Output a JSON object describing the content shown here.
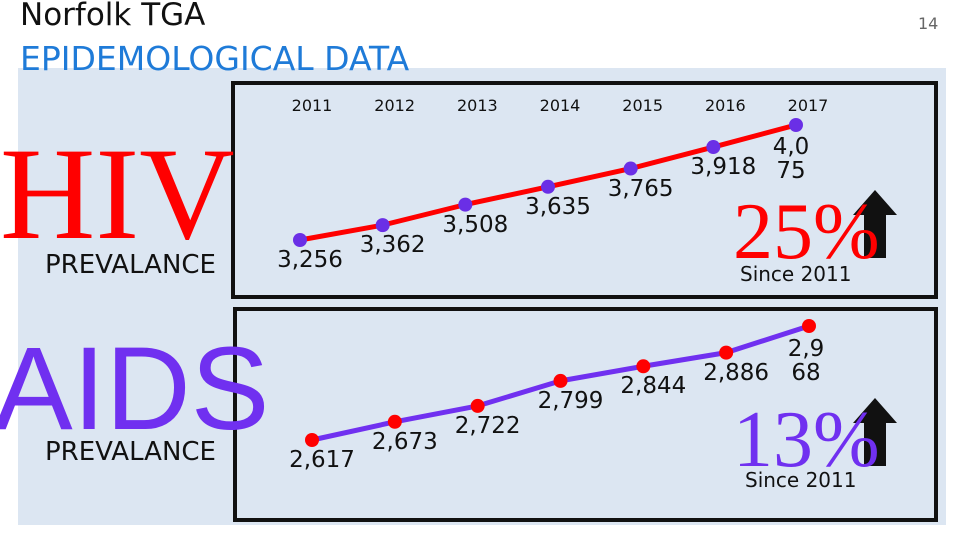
{
  "slide": {
    "title": "Norfolk TGA",
    "subtitle": "EPIDEMOLOGICAL DATA",
    "page_number": "14"
  },
  "chart_data": [
    {
      "type": "line",
      "title": "HIV",
      "subtitle": "PREVALANCE",
      "categories": [
        "2011",
        "2012",
        "2013",
        "2014",
        "2015",
        "2016",
        "2017"
      ],
      "values": [
        3256,
        3362,
        3508,
        3635,
        3765,
        3918,
        4075
      ],
      "value_labels": [
        "3,256",
        "3,362",
        "3,508",
        "3,635",
        "3,765",
        "3,918",
        "4,075"
      ],
      "color": "#ff0000",
      "marker_color": "#6a2fe6",
      "annotations": {
        "change": "25%",
        "note": "Since 2011"
      }
    },
    {
      "type": "line",
      "title": "AIDS",
      "subtitle": "PREVALANCE",
      "values": [
        2617,
        2673,
        2722,
        2799,
        2844,
        2886,
        2968
      ],
      "value_labels": [
        "2,617",
        "2,673",
        "2,722",
        "2,799",
        "2,844",
        "2,886",
        "2,968"
      ],
      "color": "#7030f0",
      "marker_color": "#ff0000",
      "annotations": {
        "change": "13%",
        "note": "Since 2011"
      }
    }
  ]
}
